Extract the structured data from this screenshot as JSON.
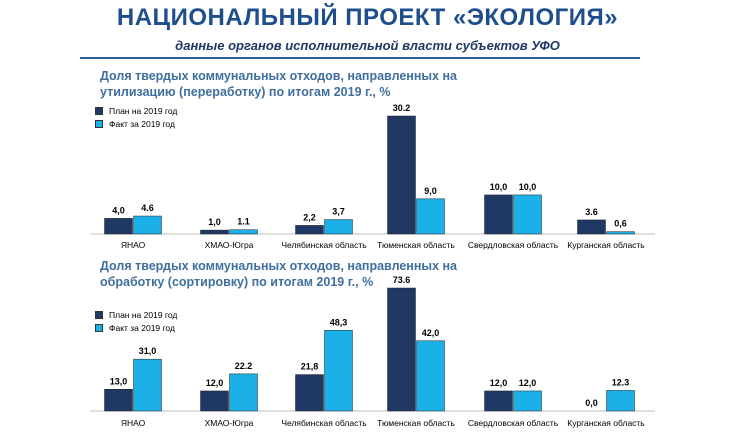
{
  "header": {
    "title": "НАЦИОНАЛЬНЫЙ ПРОЕКТ «ЭКОЛОГИЯ»",
    "subtitle": "данные органов исполнительной власти субъектов УФО"
  },
  "colors": {
    "plan": "#1f3864",
    "fact": "#1cb0e8"
  },
  "chart_data": [
    {
      "type": "bar",
      "title": "Доля твердых коммунальных отходов, направленных на утилизацию (переработку) по итогам 2019 г., %",
      "title_lines": [
        "Доля твердых коммунальных отходов, направленных на",
        "утилизацию (переработку) по итогам 2019 г., %"
      ],
      "categories": [
        "ЯНАО",
        "ХМАО-Югра",
        "Челябинская область",
        "Тюменская область",
        "Свердловская область",
        "Курганская область"
      ],
      "series": [
        {
          "name": "План на 2019 год",
          "values": [
            4.0,
            1.0,
            2.2,
            30.2,
            10.0,
            3.6
          ],
          "labels": [
            "4,0",
            "1,0",
            "2,2",
            "30.2",
            "10,0",
            "3.6"
          ]
        },
        {
          "name": "Факт за 2019 год",
          "values": [
            4.6,
            1.1,
            3.7,
            9.0,
            10.0,
            0.6
          ],
          "labels": [
            "4.6",
            "1.1",
            "3,7",
            "9,0",
            "10,0",
            "0,6"
          ]
        }
      ],
      "legend": "top-left",
      "ylim": [
        0,
        30.2
      ]
    },
    {
      "type": "bar",
      "title": "Доля твердых коммунальных отходов, направленных на обработку (сортировку) по итогам 2019 г., %",
      "title_lines": [
        "Доля твердых коммунальных отходов, направленных на",
        "обработку (сортировку) по итогам 2019 г., %"
      ],
      "categories": [
        "ЯНАО",
        "ХМАО-Югра",
        "Челябинская область",
        "Тюменская область",
        "Свердловская область",
        "Курганская область"
      ],
      "series": [
        {
          "name": "План на 2019 год",
          "values": [
            13.0,
            12.0,
            21.8,
            73.6,
            12.0,
            0.0
          ],
          "labels": [
            "13,0",
            "12,0",
            "21,8",
            "73.6",
            "12,0",
            "0,0"
          ]
        },
        {
          "name": "Факт за 2019 год",
          "values": [
            31.0,
            22.2,
            48.3,
            42.0,
            12.0,
            12.3
          ],
          "labels": [
            "31,0",
            "22.2",
            "48,3",
            "42,0",
            "12,0",
            "12.3"
          ]
        }
      ],
      "legend": "top-left",
      "ylim": [
        0,
        73.6
      ]
    }
  ]
}
